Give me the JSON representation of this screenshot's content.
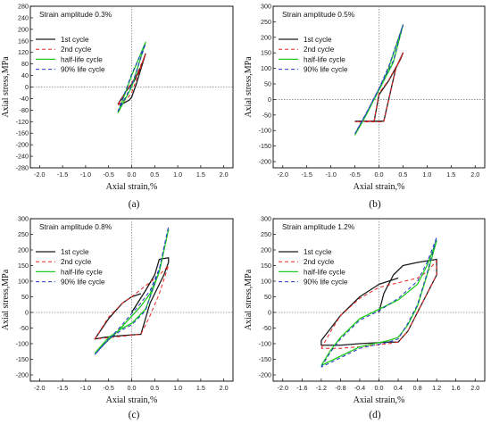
{
  "colors": {
    "first": "#1a1a1a",
    "second": "#ee2222",
    "half": "#22cc22",
    "ninety": "#2233cc",
    "axis": "#000000",
    "ref": "#888888"
  },
  "chart_data": [
    {
      "type": "line",
      "caption": "(a)",
      "title": "Strain amplitude 0.3%",
      "xlabel": "Axial strain,%",
      "ylabel": "Axial stress,MPa",
      "xlim": [
        -2.2,
        2.2
      ],
      "ylim": [
        -280,
        280
      ],
      "xticks": [
        "-2.0",
        "-1.5",
        "-1.0",
        "-0.5",
        "0.0",
        "0.5",
        "1.0",
        "1.5",
        "2.0"
      ],
      "yticks": [
        "-280",
        "-240",
        "-200",
        "-160",
        "-120",
        "-80",
        "-40",
        "0",
        "40",
        "80",
        "120",
        "160",
        "200",
        "240",
        "280"
      ],
      "grid": false,
      "legend": "upper-left",
      "series": [
        {
          "name": "1st cycle",
          "x": [
            -0.3,
            -0.2,
            -0.05,
            0.0,
            0.1,
            0.3,
            0.2,
            0.05,
            -0.1,
            -0.3
          ],
          "y": [
            -60,
            -58,
            -45,
            -35,
            10,
            115,
            70,
            20,
            -10,
            -60
          ]
        },
        {
          "name": "2nd cycle",
          "x": [
            -0.3,
            -0.1,
            0.0,
            0.3,
            0.1,
            -0.1,
            -0.3
          ],
          "y": [
            -62,
            -40,
            -20,
            113,
            40,
            -10,
            -62
          ]
        },
        {
          "name": "half-life cycle",
          "x": [
            -0.3,
            0.0,
            0.3,
            0.0,
            -0.3
          ],
          "y": [
            -90,
            0,
            155,
            40,
            -90
          ]
        },
        {
          "name": "90% life cycle",
          "x": [
            -0.3,
            0.0,
            0.3,
            0.0,
            -0.3
          ],
          "y": [
            -85,
            5,
            150,
            45,
            -85
          ]
        }
      ]
    },
    {
      "type": "line",
      "caption": "(b)",
      "title": "Strain amplitude 0.5%",
      "xlabel": "Axial strain,%",
      "ylabel": "Axial stress,MPa",
      "xlim": [
        -2.2,
        2.2
      ],
      "ylim": [
        -220,
        300
      ],
      "xticks": [
        "-2.0",
        "-1.5",
        "-1.0",
        "-0.5",
        "0.0",
        "0.5",
        "1.0",
        "1.5",
        "2.0"
      ],
      "yticks": [
        "-200",
        "-150",
        "-100",
        "-50",
        "0",
        "50",
        "100",
        "150",
        "200",
        "250",
        "300"
      ],
      "grid": false,
      "legend": "upper-left",
      "series": [
        {
          "name": "1st cycle",
          "x": [
            -0.5,
            -0.1,
            0.0,
            0.2,
            0.45,
            0.5,
            0.35,
            0.1,
            -0.5
          ],
          "y": [
            -70,
            -70,
            15,
            60,
            130,
            150,
            100,
            -70,
            -70
          ]
        },
        {
          "name": "2nd cycle",
          "x": [
            -0.5,
            -0.1,
            0.0,
            0.2,
            0.45,
            0.5,
            0.35,
            0.1,
            -0.5
          ],
          "y": [
            -72,
            -68,
            20,
            62,
            132,
            150,
            98,
            -72,
            -72
          ]
        },
        {
          "name": "half-life cycle",
          "x": [
            -0.5,
            -0.3,
            0.0,
            0.2,
            0.5,
            0.3,
            0.0,
            -0.2,
            -0.5
          ],
          "y": [
            -115,
            -60,
            30,
            100,
            240,
            120,
            30,
            -30,
            -115
          ]
        },
        {
          "name": "90% life cycle",
          "x": [
            -0.5,
            -0.3,
            0.0,
            0.2,
            0.5,
            0.3,
            0.0,
            -0.2,
            -0.5
          ],
          "y": [
            -110,
            -55,
            35,
            105,
            240,
            125,
            35,
            -25,
            -110
          ]
        }
      ]
    },
    {
      "type": "line",
      "caption": "(c)",
      "title": "Strain amplitude 0.8%",
      "xlabel": "Axial strain,%",
      "ylabel": "Axial stress,MPa",
      "xlim": [
        -2.2,
        2.2
      ],
      "ylim": [
        -220,
        300
      ],
      "xticks": [
        "-2.0",
        "-1.5",
        "-1.0",
        "-0.5",
        "0.0",
        "0.5",
        "1.0",
        "1.5",
        "2.0"
      ],
      "yticks": [
        "-200",
        "-150",
        "-100",
        "-50",
        "0",
        "50",
        "100",
        "150",
        "200",
        "250",
        "300"
      ],
      "grid": false,
      "legend": "upper-left",
      "series": [
        {
          "name": "1st cycle",
          "x": [
            0.0,
            0.3,
            0.5,
            0.6,
            0.8,
            0.8,
            0.7,
            0.4,
            0.2,
            -0.3,
            -0.6,
            -0.8,
            -0.5,
            -0.2,
            0.0,
            0.1,
            0.2
          ],
          "y": [
            0,
            70,
            120,
            170,
            175,
            160,
            120,
            30,
            -70,
            -75,
            -80,
            -85,
            -20,
            30,
            50,
            55,
            60
          ]
        },
        {
          "name": "2nd cycle",
          "x": [
            -0.8,
            -0.5,
            -0.2,
            0.0,
            0.3,
            0.6,
            0.8,
            0.6,
            0.4,
            0.2,
            -0.3,
            -0.8
          ],
          "y": [
            -85,
            -15,
            30,
            50,
            85,
            120,
            150,
            60,
            -10,
            -70,
            -78,
            -85
          ]
        },
        {
          "name": "half-life cycle",
          "x": [
            -0.8,
            -0.5,
            -0.2,
            0.0,
            0.3,
            0.6,
            0.8,
            0.6,
            0.4,
            0.2,
            -0.3,
            -0.8
          ],
          "y": [
            -130,
            -80,
            -50,
            -35,
            10,
            130,
            265,
            130,
            60,
            20,
            -60,
            -130
          ]
        },
        {
          "name": "90% life cycle",
          "x": [
            -0.8,
            -0.5,
            -0.2,
            0.0,
            0.3,
            0.6,
            0.8,
            0.6,
            0.4,
            0.2,
            -0.3,
            -0.8
          ],
          "y": [
            -135,
            -85,
            -55,
            -40,
            5,
            140,
            275,
            140,
            70,
            30,
            -55,
            -135
          ]
        }
      ]
    },
    {
      "type": "line",
      "caption": "(d)",
      "title": "Strain amplitude 1.2%",
      "xlabel": "Axial strain,%",
      "ylabel": "Axial stress,MPa",
      "xlim": [
        -2.2,
        2.2
      ],
      "ylim": [
        -220,
        300
      ],
      "xticks": [
        "-2.0",
        "-1.6",
        "-1.2",
        "-0.8",
        "-0.4",
        "0.0",
        "0.4",
        "0.8",
        "1.2",
        "1.6",
        "2.0"
      ],
      "yticks": [
        "-200",
        "-150",
        "-100",
        "-50",
        "0",
        "50",
        "100",
        "150",
        "200",
        "250",
        "300"
      ],
      "grid": false,
      "legend": "upper-left",
      "series": [
        {
          "name": "1st cycle",
          "x": [
            0.0,
            0.1,
            0.3,
            0.5,
            0.8,
            1.0,
            1.2,
            1.2,
            1.0,
            0.8,
            0.6,
            0.4,
            0.2,
            -0.4,
            -0.8,
            -1.2,
            -1.2,
            -1.0,
            -0.8,
            -0.4,
            0.0,
            0.4
          ],
          "y": [
            0,
            60,
            120,
            150,
            160,
            165,
            170,
            120,
            60,
            0,
            -60,
            -95,
            -95,
            -100,
            -105,
            -105,
            -90,
            -50,
            -10,
            50,
            90,
            110
          ]
        },
        {
          "name": "2nd cycle",
          "x": [
            -1.2,
            -1.0,
            -0.8,
            -0.4,
            0.0,
            0.4,
            0.8,
            1.0,
            1.2,
            1.2,
            1.0,
            0.8,
            0.6,
            0.4,
            0.2,
            -0.4,
            -0.8,
            -1.2
          ],
          "y": [
            -115,
            -60,
            -10,
            45,
            80,
            95,
            110,
            130,
            165,
            120,
            60,
            0,
            -60,
            -95,
            -100,
            -110,
            -115,
            -115
          ]
        },
        {
          "name": "half-life cycle",
          "x": [
            -1.2,
            -1.0,
            -0.8,
            -0.4,
            0.0,
            0.4,
            0.8,
            1.0,
            1.2,
            1.0,
            0.8,
            0.6,
            0.4,
            0.2,
            -0.4,
            -0.8,
            -1.2
          ],
          "y": [
            -170,
            -120,
            -80,
            -20,
            10,
            40,
            90,
            150,
            230,
            120,
            20,
            -40,
            -80,
            -90,
            -110,
            -140,
            -170
          ]
        },
        {
          "name": "90% life cycle",
          "x": [
            -1.2,
            -1.0,
            -0.8,
            -0.4,
            0.0,
            0.4,
            0.8,
            1.0,
            1.2,
            1.0,
            0.8,
            0.6,
            0.4,
            0.2,
            -0.4,
            -0.8,
            -1.2
          ],
          "y": [
            -175,
            -125,
            -85,
            -25,
            5,
            45,
            100,
            160,
            240,
            125,
            25,
            -35,
            -85,
            -95,
            -115,
            -145,
            -175
          ]
        }
      ]
    }
  ]
}
